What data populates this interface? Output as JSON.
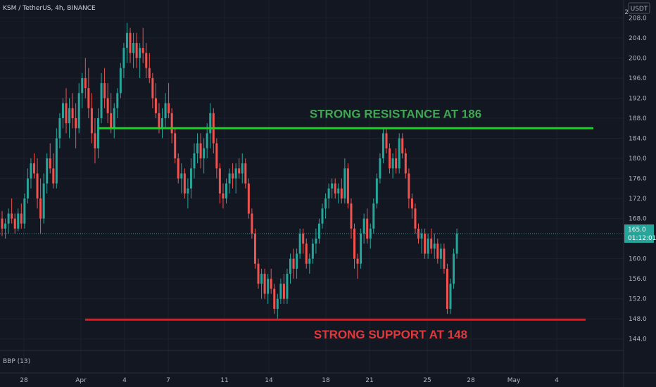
{
  "header": {
    "symbol_label": "KSM / TetherUS, 4h, BINANCE",
    "currency_badge": "USDT",
    "corner_label": "2"
  },
  "indicator": {
    "label": "BBP (13)"
  },
  "price_tag": {
    "price": "165.0",
    "countdown": "01:12:01"
  },
  "colors": {
    "background": "#131722",
    "up": "#26a69a",
    "down": "#ef5350",
    "resistance": "#16d91c",
    "support": "#e3191d",
    "resistance_text": "#3fa652",
    "support_text": "#e2383c",
    "grid": "#1e222d"
  },
  "chart_data": {
    "type": "candlestick",
    "x_ticks": [
      "28",
      "Apr",
      "4",
      "7",
      "11",
      "14",
      "18",
      "21",
      "25",
      "28",
      "May",
      "4"
    ],
    "y_ticks": [
      "144.0",
      "148.0",
      "152.0",
      "156.0",
      "160.0",
      "164.0",
      "168.0",
      "172.0",
      "176.0",
      "180.0",
      "184.0",
      "188.0",
      "192.0",
      "196.0",
      "200.0",
      "204.0",
      "208.0"
    ],
    "ylim": [
      142.0,
      211.0
    ],
    "grid": true,
    "last_price": 165.0,
    "resistance": {
      "value": 186,
      "label": "STRONG RESISTANCE AT 186"
    },
    "support": {
      "value": 148,
      "label": "STRONG SUPPORT AT 148"
    },
    "candles": [
      [
        168,
        169.5,
        164.5,
        166
      ],
      [
        166,
        168,
        164,
        167
      ],
      [
        167,
        170,
        165,
        169
      ],
      [
        169,
        172,
        167,
        168
      ],
      [
        168,
        169,
        165,
        166
      ],
      [
        166,
        170,
        165.5,
        169
      ],
      [
        169,
        171,
        166,
        167
      ],
      [
        167,
        173,
        166,
        172
      ],
      [
        172,
        178,
        171,
        176
      ],
      [
        176,
        180,
        174,
        179
      ],
      [
        179,
        181,
        176,
        177
      ],
      [
        177,
        180,
        170,
        172
      ],
      [
        172,
        176,
        165,
        168
      ],
      [
        168,
        177,
        167,
        175
      ],
      [
        175,
        181,
        173,
        180
      ],
      [
        180,
        183,
        177,
        178
      ],
      [
        178,
        181,
        174,
        175
      ],
      [
        175,
        186,
        174,
        184
      ],
      [
        184,
        189,
        182,
        188
      ],
      [
        188,
        192,
        186,
        191
      ],
      [
        191,
        194,
        185,
        187
      ],
      [
        187,
        192,
        184,
        190
      ],
      [
        190,
        193,
        186,
        188
      ],
      [
        188,
        191,
        182,
        186
      ],
      [
        186,
        195,
        185,
        193
      ],
      [
        193,
        197,
        190,
        196
      ],
      [
        196,
        200,
        192,
        194
      ],
      [
        194,
        198,
        188,
        190
      ],
      [
        190,
        193,
        183,
        185
      ],
      [
        185,
        188,
        179,
        182
      ],
      [
        182,
        190,
        180,
        188
      ],
      [
        188,
        197,
        187,
        195
      ],
      [
        195,
        198,
        190,
        192
      ],
      [
        192,
        195,
        187,
        189
      ],
      [
        189,
        193,
        185,
        186
      ],
      [
        186,
        191,
        184,
        190
      ],
      [
        190,
        194,
        188,
        193
      ],
      [
        193,
        199,
        192,
        198
      ],
      [
        198,
        203,
        196,
        202
      ],
      [
        202,
        207,
        199,
        205
      ],
      [
        205,
        206,
        199,
        201
      ],
      [
        201,
        205,
        198,
        203
      ],
      [
        203,
        205,
        198,
        200
      ],
      [
        200,
        203,
        196,
        202
      ],
      [
        202,
        206,
        199,
        201
      ],
      [
        201,
        203,
        196,
        198
      ],
      [
        198,
        201,
        195,
        196
      ],
      [
        196,
        197,
        190,
        192
      ],
      [
        192,
        195,
        188,
        189
      ],
      [
        189,
        191,
        185,
        186
      ],
      [
        186,
        190,
        184,
        188
      ],
      [
        188,
        193,
        186,
        191
      ],
      [
        191,
        195,
        188,
        189
      ],
      [
        189,
        190,
        183,
        185
      ],
      [
        185,
        186,
        179,
        180
      ],
      [
        180,
        181,
        175,
        176
      ],
      [
        176,
        179,
        173,
        177
      ],
      [
        177,
        178,
        172,
        173
      ],
      [
        173,
        176,
        170,
        174
      ],
      [
        174,
        180,
        172,
        178
      ],
      [
        178,
        183,
        176,
        181
      ],
      [
        181,
        185,
        179,
        183
      ],
      [
        183,
        185,
        178,
        180
      ],
      [
        180,
        184,
        177,
        182
      ],
      [
        182,
        187,
        180,
        185
      ],
      [
        185,
        191,
        182,
        189
      ],
      [
        189,
        190,
        181,
        183
      ],
      [
        183,
        184,
        176,
        178
      ],
      [
        178,
        179,
        171,
        173
      ],
      [
        173,
        175,
        170,
        172
      ],
      [
        172,
        176,
        171,
        175
      ],
      [
        175,
        178,
        173,
        177
      ],
      [
        177,
        179,
        174,
        176
      ],
      [
        176,
        179,
        173,
        178
      ],
      [
        178,
        180,
        176,
        177
      ],
      [
        177,
        181,
        175,
        179
      ],
      [
        179,
        180,
        174,
        175
      ],
      [
        175,
        176,
        168,
        169
      ],
      [
        169,
        170,
        164,
        165
      ],
      [
        165,
        166,
        158,
        159
      ],
      [
        159,
        160,
        154,
        155
      ],
      [
        155,
        158,
        152,
        157
      ],
      [
        157,
        158,
        152,
        153
      ],
      [
        153,
        157,
        151,
        156
      ],
      [
        156,
        158,
        153,
        154
      ],
      [
        154,
        155,
        149,
        150
      ],
      [
        150,
        153,
        148,
        152
      ],
      [
        152,
        156,
        151,
        155
      ],
      [
        155,
        157,
        151,
        152
      ],
      [
        152,
        158,
        151,
        157
      ],
      [
        157,
        161,
        155,
        160
      ],
      [
        160,
        162,
        156,
        158
      ],
      [
        158,
        162,
        156,
        161
      ],
      [
        161,
        166,
        160,
        165
      ],
      [
        165,
        166,
        161,
        163
      ],
      [
        163,
        164,
        158,
        159
      ],
      [
        159,
        161,
        157,
        160
      ],
      [
        160,
        164,
        159,
        163
      ],
      [
        163,
        166,
        161,
        164
      ],
      [
        164,
        168,
        163,
        167
      ],
      [
        167,
        171,
        166,
        170
      ],
      [
        170,
        173,
        168,
        172
      ],
      [
        172,
        175,
        170,
        174
      ],
      [
        174,
        176,
        172,
        175
      ],
      [
        175,
        176,
        172,
        173
      ],
      [
        173,
        175,
        171,
        174
      ],
      [
        174,
        176,
        171,
        172
      ],
      [
        172,
        180,
        171,
        178
      ],
      [
        178,
        179,
        170,
        171
      ],
      [
        171,
        172,
        164,
        166
      ],
      [
        166,
        167,
        158,
        160
      ],
      [
        160,
        161,
        156,
        159
      ],
      [
        159,
        166,
        158,
        165
      ],
      [
        165,
        169,
        163,
        168
      ],
      [
        168,
        170,
        163,
        164
      ],
      [
        164,
        167,
        162,
        166
      ],
      [
        166,
        172,
        165,
        171
      ],
      [
        171,
        177,
        170,
        176
      ],
      [
        176,
        181,
        175,
        180
      ],
      [
        180,
        186,
        179,
        185
      ],
      [
        185,
        186,
        181,
        182
      ],
      [
        182,
        183,
        177,
        178
      ],
      [
        178,
        181,
        176,
        180
      ],
      [
        180,
        182,
        177,
        178
      ],
      [
        178,
        185,
        177,
        184
      ],
      [
        184,
        185,
        180,
        181
      ],
      [
        181,
        182,
        176,
        177
      ],
      [
        177,
        178,
        170,
        172
      ],
      [
        172,
        173,
        168,
        170
      ],
      [
        170,
        171,
        165,
        166
      ],
      [
        166,
        167,
        163,
        164
      ],
      [
        164,
        166,
        161,
        165
      ],
      [
        165,
        166,
        160,
        161
      ],
      [
        161,
        165,
        160,
        164
      ],
      [
        164,
        166,
        161,
        162
      ],
      [
        162,
        165,
        160,
        163
      ],
      [
        163,
        164,
        159,
        160
      ],
      [
        160,
        163,
        158,
        162
      ],
      [
        162,
        163,
        157,
        158
      ],
      [
        158,
        159,
        149,
        150
      ],
      [
        150,
        156,
        149,
        155
      ],
      [
        155,
        162,
        154,
        161
      ],
      [
        161,
        166,
        160,
        165
      ]
    ]
  }
}
